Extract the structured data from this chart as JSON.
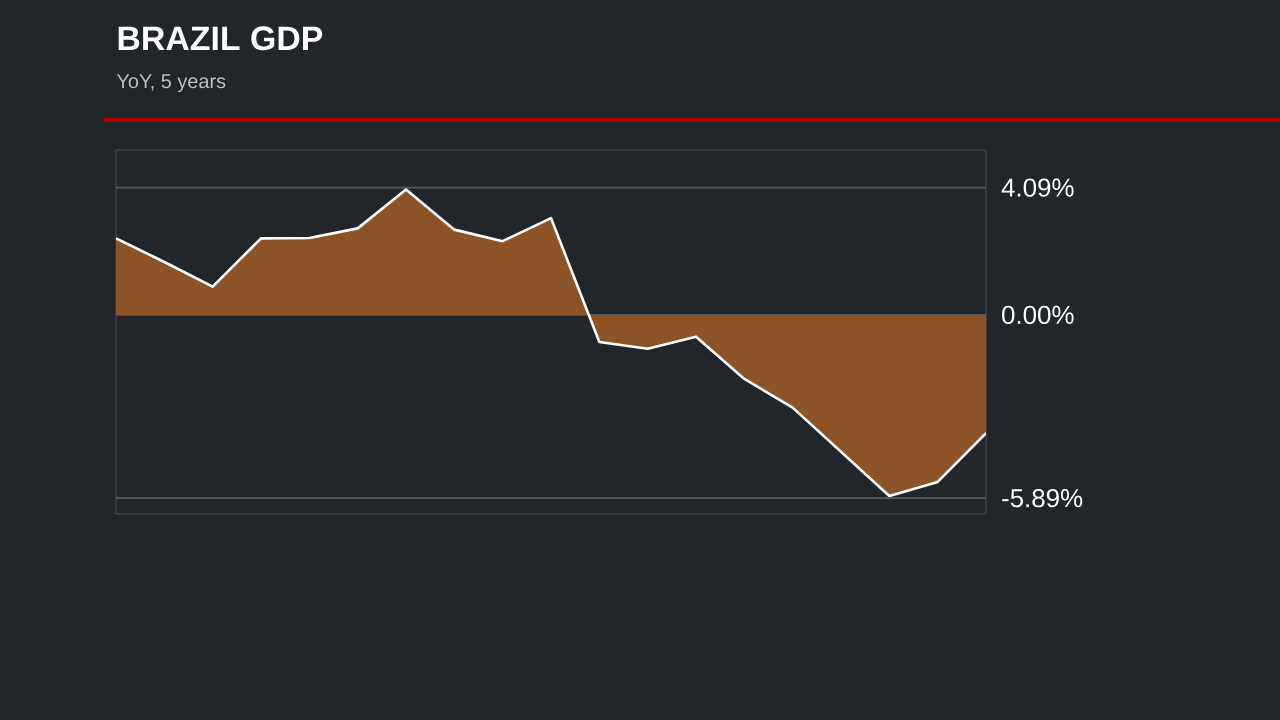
{
  "chart_data": {
    "type": "area",
    "title": "BRAZIL GDP",
    "subtitle": "YoY, 5 years",
    "categories": [
      null,
      null,
      null,
      null,
      null,
      null,
      null,
      null,
      null,
      null,
      null,
      null,
      null,
      null,
      null,
      null,
      null,
      null,
      null
    ],
    "series": [
      {
        "color": "#8c5426",
        "values": [
          2.46,
          1.7,
          0.91,
          2.46,
          2.47,
          2.78,
          4.03,
          2.74,
          2.37,
          3.11,
          -0.87,
          -1.09,
          -0.7,
          -2.06,
          -2.98,
          -4.4,
          -5.82,
          -5.37,
          -3.8
        ]
      }
    ],
    "ylim": [
      -6.4,
      5.3
    ],
    "yticks": [
      {
        "value": -5.89,
        "label": "-5.89%"
      },
      {
        "value": 0,
        "label": "0.00%"
      },
      {
        "value": 4.09,
        "label": "4.09%"
      }
    ],
    "grid": "y"
  }
}
